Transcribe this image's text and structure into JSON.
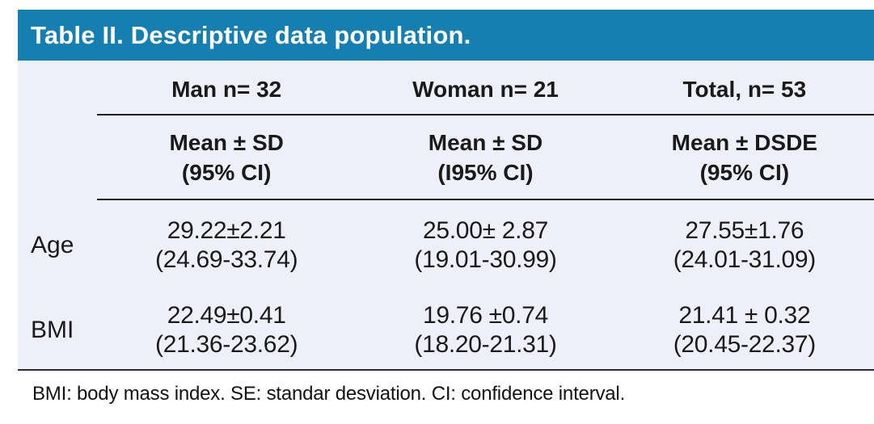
{
  "title": "Table II. Descriptive data population.",
  "footnote": "BMI: body mass index. SE: standar desviation. CI: confidence interval.",
  "colors": {
    "header_bg": "#157fb1",
    "title_text": "#ffffff",
    "panel_bg": "#edf0f8",
    "rule": "#1c1c1c",
    "body_text": "#1a1a1a"
  },
  "chart_data": {
    "type": "table",
    "title": "Table II. Descriptive data population.",
    "column_groups": [
      "Man n= 32",
      "Woman n= 21",
      "Total, n= 53"
    ],
    "subheaders": [
      [
        "Mean ± SD",
        "(95% CI)"
      ],
      [
        "Mean ± SD",
        "(I95% CI)"
      ],
      [
        "Mean ± DSDE",
        "(95% CI)"
      ]
    ],
    "rows": [
      {
        "label": "Age",
        "cells": [
          [
            "29.22±2.21",
            "(24.69-33.74)"
          ],
          [
            "25.00± 2.87",
            "(19.01-30.99)"
          ],
          [
            "27.55±1.76",
            "(24.01-31.09)"
          ]
        ]
      },
      {
        "label": "BMI",
        "cells": [
          [
            "22.49±0.41",
            "(21.36-23.62)"
          ],
          [
            "19.76 ±0.74",
            "(18.20-21.31)"
          ],
          [
            "21.41 ± 0.32",
            "(20.45-22.37)"
          ]
        ]
      }
    ],
    "footnote": "BMI: body mass index. SE: standar desviation. CI: confidence interval.",
    "numeric_values": {
      "Age": {
        "man": {
          "mean": 29.22,
          "sd": 2.21,
          "ci95": [
            24.69,
            33.74
          ]
        },
        "woman": {
          "mean": 25.0,
          "sd": 2.87,
          "ci95": [
            19.01,
            30.99
          ]
        },
        "total": {
          "mean": 27.55,
          "sd": 1.76,
          "ci95": [
            24.01,
            31.09
          ]
        }
      },
      "BMI": {
        "man": {
          "mean": 22.49,
          "sd": 0.41,
          "ci95": [
            21.36,
            23.62
          ]
        },
        "woman": {
          "mean": 19.76,
          "sd": 0.74,
          "ci95": [
            18.2,
            21.31
          ]
        },
        "total": {
          "mean": 21.41,
          "sd": 0.32,
          "ci95": [
            20.45,
            22.37
          ]
        }
      },
      "n": {
        "man": 32,
        "woman": 21,
        "total": 53
      }
    }
  }
}
